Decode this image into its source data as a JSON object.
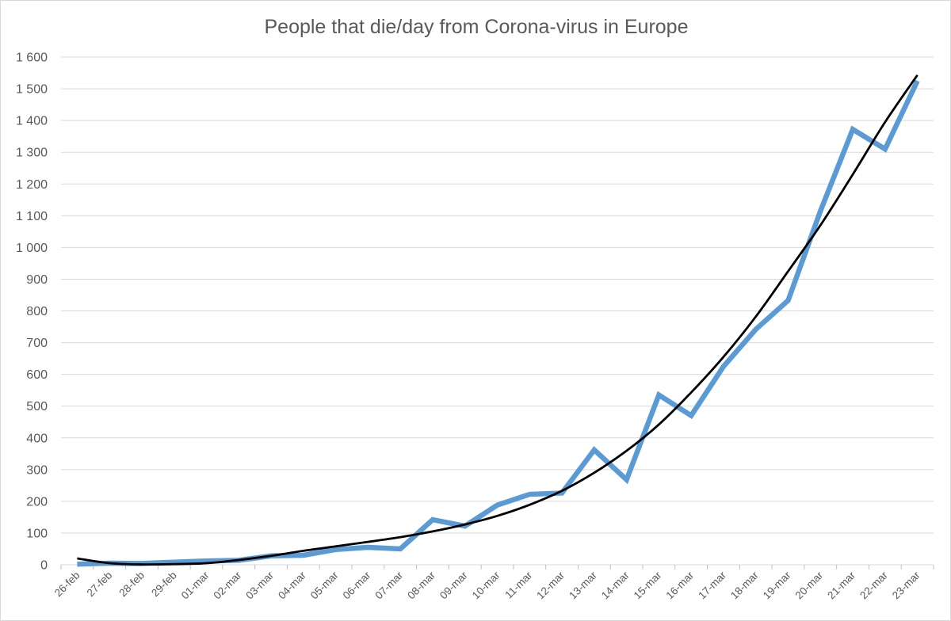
{
  "chart_data": {
    "type": "line",
    "title": "People that die/day from Corona-virus in Europe",
    "xlabel": "",
    "ylabel": "",
    "ylim": [
      0,
      1600
    ],
    "yticks": [
      0,
      100,
      200,
      300,
      400,
      500,
      600,
      700,
      800,
      900,
      1000,
      1100,
      1200,
      1300,
      1400,
      1500,
      1600
    ],
    "ytick_labels": [
      "0",
      "100",
      "200",
      "300",
      "400",
      "500",
      "600",
      "700",
      "800",
      "900",
      "1 000",
      "1 100",
      "1 200",
      "1 300",
      "1 400",
      "1 500",
      "1 600"
    ],
    "grid": true,
    "legend": "none",
    "categories": [
      "26-feb",
      "27-feb",
      "28-feb",
      "29-feb",
      "01-mar",
      "02-mar",
      "03-mar",
      "04-mar",
      "05-mar",
      "06-mar",
      "07-mar",
      "08-mar",
      "09-mar",
      "10-mar",
      "11-mar",
      "12-mar",
      "13-mar",
      "14-mar",
      "15-mar",
      "16-mar",
      "17-mar",
      "18-mar",
      "19-mar",
      "20-mar",
      "21-mar",
      "22-mar",
      "23-mar"
    ],
    "series": [
      {
        "color": "#5b9bd5",
        "values": [
          2,
          5,
          4,
          8,
          12,
          14,
          28,
          30,
          48,
          55,
          50,
          142,
          122,
          188,
          222,
          226,
          362,
          268,
          535,
          470,
          625,
          742,
          833,
          1115,
          1372,
          1310,
          1525
        ]
      }
    ],
    "trendline": {
      "type": "polynomial",
      "color": "#000000",
      "values": [
        20,
        5,
        1,
        2,
        5,
        15,
        28,
        44,
        58,
        72,
        87,
        105,
        127,
        154,
        189,
        233,
        290,
        359,
        442,
        543,
        655,
        782,
        925,
        1070,
        1230,
        1395,
        1543
      ]
    }
  }
}
